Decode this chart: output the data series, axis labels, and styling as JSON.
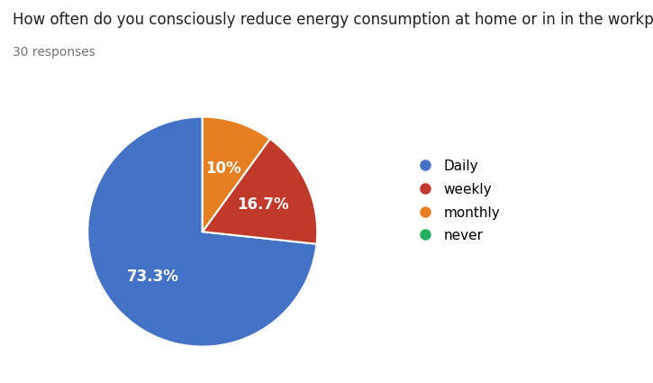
{
  "title": "How often do you consciously reduce energy consumption at home or in in the workplace?",
  "subtitle": "30 responses",
  "labels": [
    "Daily",
    "weekly",
    "monthly",
    "never"
  ],
  "values": [
    73.3,
    16.7,
    10.0,
    0.0
  ],
  "colors": [
    "#4472C4",
    "#C0392B",
    "#E67E22",
    "#27AE60"
  ],
  "pct_labels": [
    "73.3%",
    "16.7%",
    "10%",
    ""
  ],
  "title_fontsize": 12,
  "subtitle_fontsize": 10,
  "legend_fontsize": 11,
  "pct_fontsize": 12,
  "background_color": "#ffffff",
  "startangle": 90
}
